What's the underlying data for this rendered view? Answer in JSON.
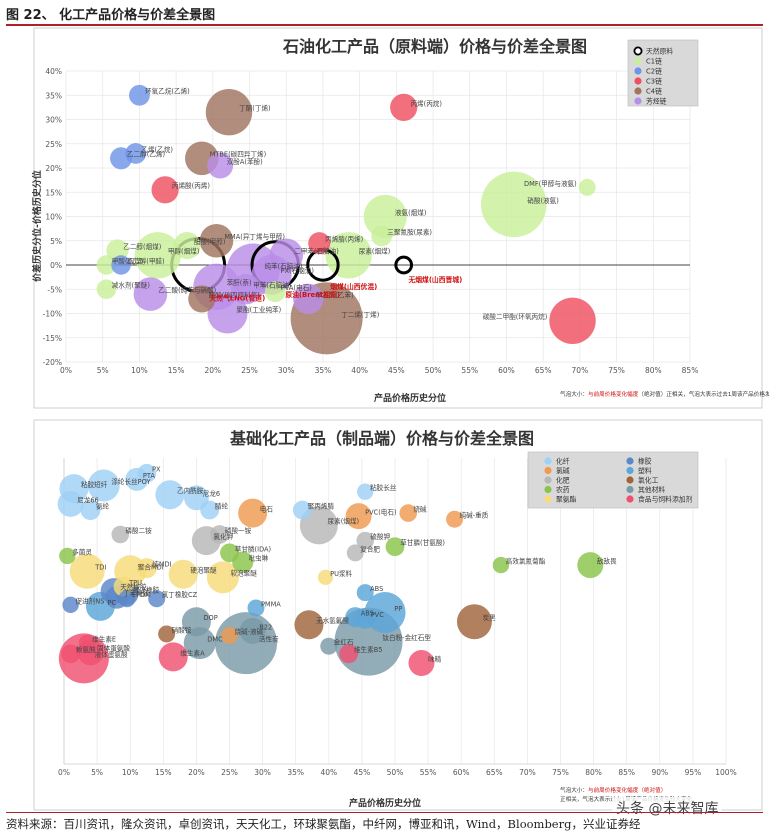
{
  "figure": {
    "title": "图 22、 化工产品价格与价差全景图",
    "source": "资料来源：百川资讯，隆众资讯，卓创资讯，天天化工，环球聚氨酯，中纤网，博亚和讯，Wind，Bloomberg，兴业证券经",
    "watermark": "头条 @未来智库"
  },
  "chart_data": [
    {
      "type": "scatter",
      "title": "石油化工产品（原料端）价格与价差全景图",
      "xlabel": "产品价格历史分位",
      "ylabel": "价差历史分位-价格历史分位",
      "xlim": [
        0,
        0.85
      ],
      "ylim": [
        -0.2,
        0.4
      ],
      "xticks": [
        "0%",
        "5%",
        "10%",
        "15%",
        "20%",
        "25%",
        "30%",
        "35%",
        "40%",
        "45%",
        "50%",
        "55%",
        "60%",
        "65%",
        "70%",
        "75%",
        "80%",
        "85%"
      ],
      "yticks": [
        "40%",
        "35%",
        "30%",
        "25%",
        "20%",
        "15%",
        "10%",
        "5%",
        "0%",
        "-5%",
        "-10%",
        "-15%",
        "-20%"
      ],
      "legend_position": "top-right",
      "legend": [
        {
          "name": "天然原料",
          "color": "#ffffff",
          "ring": true
        },
        {
          "name": "C1链",
          "color": "#c9ef9a"
        },
        {
          "name": "C2链",
          "color": "#6f95e8"
        },
        {
          "name": "C3链",
          "color": "#ef5060"
        },
        {
          "name": "C4链",
          "color": "#a07460"
        },
        {
          "name": "芳烃链",
          "color": "#b98ee8"
        }
      ],
      "note": {
        "prefix": "气泡大小：",
        "red": "与前周价格变化幅度",
        "rest": "（绝对值）正相关，气泡大表示过去1周该产品价格发生较大变化"
      },
      "points": [
        {
          "label": "环氧乙烷(乙烯)",
          "x": 0.1,
          "y": 0.35,
          "size": 0.2,
          "group": "C2链"
        },
        {
          "label": "乙烯(乙烷)",
          "x": 0.095,
          "y": 0.23,
          "size": 0.2,
          "group": "C2链"
        },
        {
          "label": "乙二醇(乙烯)",
          "x": 0.075,
          "y": 0.22,
          "size": 0.22,
          "group": "C2链"
        },
        {
          "label": "丁酮(丁烯)",
          "x": 0.222,
          "y": 0.315,
          "size": 0.6,
          "group": "C4链"
        },
        {
          "label": "丙烯(丙烷)",
          "x": 0.46,
          "y": 0.325,
          "size": 0.3,
          "group": "C3链"
        },
        {
          "label": "MTBE(碳四异丁烯)",
          "x": 0.185,
          "y": 0.22,
          "size": 0.4,
          "group": "C4链"
        },
        {
          "label": "双酚A(苯酚)",
          "x": 0.21,
          "y": 0.205,
          "size": 0.28,
          "group": "芳烃链"
        },
        {
          "label": "丙烯酸(丙烯)",
          "x": 0.135,
          "y": 0.155,
          "size": 0.3,
          "group": "C3链"
        },
        {
          "label": "液氨(烟煤)",
          "x": 0.435,
          "y": 0.1,
          "size": 0.55,
          "group": "C1链"
        },
        {
          "label": "硝酸(液氨)",
          "x": 0.61,
          "y": 0.125,
          "size": 0.9,
          "group": "C1链"
        },
        {
          "label": "DMF(甲醇与液氨)",
          "x": 0.71,
          "y": 0.16,
          "size": 0.14,
          "group": "C1链"
        },
        {
          "label": "三聚氰胺(尿素)",
          "x": 0.43,
          "y": 0.06,
          "size": 0.2,
          "group": "C1链"
        },
        {
          "label": "MMA(异丁烯与甲醇)",
          "x": 0.205,
          "y": 0.05,
          "size": 0.4,
          "group": "C4链"
        },
        {
          "label": "丙烯腈(丙烯)",
          "x": 0.345,
          "y": 0.045,
          "size": 0.22,
          "group": "C3链"
        },
        {
          "label": "尿素(烟煤)",
          "x": 0.385,
          "y": 0.02,
          "size": 0.6,
          "group": "C1链"
        },
        {
          "label": "二甲苯(石脑油)",
          "x": 0.3,
          "y": 0.02,
          "size": 0.4,
          "group": "芳烃链"
        },
        {
          "label": "醋酸(甲醇)",
          "x": 0.165,
          "y": 0.04,
          "size": 0.3,
          "group": "C1链"
        },
        {
          "label": "乙二醇(烟煤)",
          "x": 0.07,
          "y": 0.03,
          "size": 0.22,
          "group": "C1链"
        },
        {
          "label": "甲醇(烟煤)",
          "x": 0.125,
          "y": 0.02,
          "size": 0.6,
          "group": "C1链"
        },
        {
          "label": "甲酸(烟煤)",
          "x": 0.055,
          "y": 0.0,
          "size": 0.18,
          "group": "C1链"
        },
        {
          "label": "乙二醇(甲醛)",
          "x": 0.075,
          "y": 0.0,
          "size": 0.18,
          "group": "C2链"
        },
        {
          "label": "减水剂(聚醚)",
          "x": 0.055,
          "y": -0.05,
          "size": 0.18,
          "group": "C1链"
        },
        {
          "label": "乙二酸(纯苯与硝酸)",
          "x": 0.115,
          "y": -0.06,
          "size": 0.4,
          "group": "芳烃链"
        },
        {
          "label": "苯酐(萘)",
          "x": 0.205,
          "y": -0.045,
          "size": 0.6,
          "group": "芳烃链"
        },
        {
          "label": "纯苯(石脑油)",
          "x": 0.255,
          "y": -0.01,
          "size": 0.7,
          "group": "芳烃链"
        },
        {
          "label": "PX(石脑油)",
          "x": 0.28,
          "y": -0.02,
          "size": 0.5,
          "group": "芳烃链"
        },
        {
          "label": "醋酸(碳四原料气)",
          "x": 0.185,
          "y": -0.07,
          "size": 0.3,
          "group": "C4链"
        },
        {
          "label": "甲苯(石脑油)",
          "x": 0.245,
          "y": -0.05,
          "size": 0.35,
          "group": "芳烃链"
        },
        {
          "label": "PVA(电石)",
          "x": 0.285,
          "y": -0.055,
          "size": 0.2,
          "group": "C1链"
        },
        {
          "label": "苯乙烯(乙苯)",
          "x": 0.33,
          "y": -0.07,
          "size": 0.35,
          "group": "芳烃链"
        },
        {
          "label": "丁二烯(丁烯)",
          "x": 0.355,
          "y": -0.11,
          "size": 1.0,
          "group": "C4链"
        },
        {
          "label": "聚酯(工业纯苯)",
          "x": 0.22,
          "y": -0.1,
          "size": 0.5,
          "group": "芳烃链"
        },
        {
          "label": "碳酸二甲酯(环氧丙烷)",
          "x": 0.69,
          "y": -0.115,
          "size": 0.6,
          "group": "C3链"
        },
        {
          "label": "天然气LNG(管道)",
          "x": 0.18,
          "y": 0.0,
          "size": 0.7,
          "group": "天然原料"
        },
        {
          "label": "原油(Brent期货)",
          "x": 0.285,
          "y": 0.0,
          "size": 0.6,
          "group": "天然原料"
        },
        {
          "label": "烟煤(山西优混)",
          "x": 0.35,
          "y": 0.0,
          "size": 0.35,
          "group": "天然原料"
        },
        {
          "label": "无烟煤(山西晋城)",
          "x": 0.46,
          "y": 0.0,
          "size": 0.12,
          "group": "天然原料"
        }
      ]
    },
    {
      "type": "scatter",
      "title": "基础化工产品（制品端）价格与价差全景图",
      "xlabel": "产品价格历史分位",
      "xlim": [
        0,
        1.0
      ],
      "xticks": [
        "0%",
        "5%",
        "10%",
        "15%",
        "20%",
        "25%",
        "30%",
        "35%",
        "40%",
        "45%",
        "50%",
        "55%",
        "60%",
        "65%",
        "70%",
        "75%",
        "80%",
        "85%",
        "90%",
        "95%",
        "100%"
      ],
      "legend_position": "top-right",
      "legend": [
        {
          "name": "化纤",
          "color": "#9fd0f5"
        },
        {
          "name": "氯碱",
          "color": "#ef9a50"
        },
        {
          "name": "化肥",
          "color": "#b7b7b7"
        },
        {
          "name": "农药",
          "color": "#8ac44a"
        },
        {
          "name": "聚氨酯",
          "color": "#f7dc79"
        },
        {
          "name": "橡胶",
          "color": "#5b88c8"
        },
        {
          "name": "塑料",
          "color": "#5ba6d8"
        },
        {
          "name": "氯化工",
          "color": "#a0643c"
        },
        {
          "name": "其他材料",
          "color": "#7a9aa8"
        },
        {
          "name": "食品与饲料添加剂",
          "color": "#f05070"
        }
      ],
      "note": {
        "prefix": "气泡大小：",
        "red": "与前周价格变化幅度（绝对值）",
        "rest": "正相关，气泡大表示过去1周该产品价格发生较大变化"
      },
      "points": [
        {
          "label": "PX",
          "x": 0.125,
          "y": 0.95,
          "size": 0.18,
          "group": "化纤"
        },
        {
          "label": "PTA",
          "x": 0.11,
          "y": 0.93,
          "size": 0.25,
          "group": "化纤"
        },
        {
          "label": "涤纶长丝POY",
          "x": 0.06,
          "y": 0.91,
          "size": 0.4,
          "group": "化纤"
        },
        {
          "label": "粘胶短纤",
          "x": 0.015,
          "y": 0.9,
          "size": 0.35,
          "group": "化纤"
        },
        {
          "label": "乙内酰胺",
          "x": 0.16,
          "y": 0.88,
          "size": 0.35,
          "group": "化纤"
        },
        {
          "label": "尼龙6",
          "x": 0.2,
          "y": 0.87,
          "size": 0.28,
          "group": "化纤"
        },
        {
          "label": "尼龙66",
          "x": 0.01,
          "y": 0.85,
          "size": 0.3,
          "group": "化纤"
        },
        {
          "label": "氨纶",
          "x": 0.04,
          "y": 0.83,
          "size": 0.2,
          "group": "化纤"
        },
        {
          "label": "腈纶",
          "x": 0.22,
          "y": 0.83,
          "size": 0.18,
          "group": "化纤"
        },
        {
          "label": "粘胶长丝",
          "x": 0.455,
          "y": 0.89,
          "size": 0.14,
          "group": "化纤"
        },
        {
          "label": "电石",
          "x": 0.285,
          "y": 0.82,
          "size": 0.35,
          "group": "氯碱"
        },
        {
          "label": "聚丙烯腈",
          "x": 0.36,
          "y": 0.83,
          "size": 0.18,
          "group": "化纤"
        },
        {
          "label": "PVC(电石)",
          "x": 0.445,
          "y": 0.81,
          "size": 0.3,
          "group": "氯碱"
        },
        {
          "label": "烧碱",
          "x": 0.52,
          "y": 0.82,
          "size": 0.16,
          "group": "氯碱"
        },
        {
          "label": "纯碱-重质",
          "x": 0.59,
          "y": 0.8,
          "size": 0.15,
          "group": "氯碱"
        },
        {
          "label": "尿素(烟煤)",
          "x": 0.385,
          "y": 0.78,
          "size": 0.5,
          "group": "化肥"
        },
        {
          "label": "磷酸一铵",
          "x": 0.235,
          "y": 0.75,
          "size": 0.18,
          "group": "化肥"
        },
        {
          "label": "磷酸二铵",
          "x": 0.085,
          "y": 0.75,
          "size": 0.16,
          "group": "化肥"
        },
        {
          "label": "氯化钾",
          "x": 0.215,
          "y": 0.73,
          "size": 0.35,
          "group": "化肥"
        },
        {
          "label": "硫酸钾",
          "x": 0.455,
          "y": 0.73,
          "size": 0.16,
          "group": "化肥"
        },
        {
          "label": "草甘膦(甘氨酸)",
          "x": 0.5,
          "y": 0.71,
          "size": 0.18,
          "group": "农药"
        },
        {
          "label": "草甘膦(IDA)",
          "x": 0.25,
          "y": 0.69,
          "size": 0.18,
          "group": "农药"
        },
        {
          "label": "复合肥",
          "x": 0.44,
          "y": 0.69,
          "size": 0.15,
          "group": "化肥"
        },
        {
          "label": "多菌灵",
          "x": 0.005,
          "y": 0.68,
          "size": 0.14,
          "group": "农药"
        },
        {
          "label": "吡虫啉",
          "x": 0.27,
          "y": 0.66,
          "size": 0.22,
          "group": "农药"
        },
        {
          "label": "高效氯氰菊酯",
          "x": 0.66,
          "y": 0.65,
          "size": 0.14,
          "group": "农药"
        },
        {
          "label": "敌敌畏",
          "x": 0.795,
          "y": 0.65,
          "size": 0.3,
          "group": "农药"
        },
        {
          "label": "TDI",
          "x": 0.035,
          "y": 0.63,
          "size": 0.45,
          "group": "聚氨酯"
        },
        {
          "label": "聚合MDI",
          "x": 0.1,
          "y": 0.63,
          "size": 0.4,
          "group": "聚氨酯"
        },
        {
          "label": "纯MDI",
          "x": 0.125,
          "y": 0.64,
          "size": 0.2,
          "group": "聚氨酯"
        },
        {
          "label": "硬泡聚醚",
          "x": 0.18,
          "y": 0.62,
          "size": 0.35,
          "group": "聚氨酯"
        },
        {
          "label": "软泡聚醚",
          "x": 0.24,
          "y": 0.61,
          "size": 0.4,
          "group": "聚氨酯"
        },
        {
          "label": "PU浆料",
          "x": 0.395,
          "y": 0.61,
          "size": 0.12,
          "group": "聚氨酯"
        },
        {
          "label": "TPU",
          "x": 0.09,
          "y": 0.58,
          "size": 0.2,
          "group": "聚氨酯"
        },
        {
          "label": "天然橡胶",
          "x": 0.075,
          "y": 0.565,
          "size": 0.3,
          "group": "橡胶"
        },
        {
          "label": "顺丁橡胶",
          "x": 0.095,
          "y": 0.555,
          "size": 0.25,
          "group": "橡胶"
        },
        {
          "label": "丁苯橡胶",
          "x": 0.08,
          "y": 0.545,
          "size": 0.25,
          "group": "橡胶"
        },
        {
          "label": "EPDM",
          "x": 0.095,
          "y": 0.54,
          "size": 0.15,
          "group": "橡胶"
        },
        {
          "label": "氯丁橡胶CZ",
          "x": 0.14,
          "y": 0.54,
          "size": 0.15,
          "group": "橡胶"
        },
        {
          "label": "促进剂NS",
          "x": 0.01,
          "y": 0.52,
          "size": 0.14,
          "group": "橡胶"
        },
        {
          "label": "PC",
          "x": 0.055,
          "y": 0.515,
          "size": 0.35,
          "group": "塑料"
        },
        {
          "label": "ABS",
          "x": 0.455,
          "y": 0.56,
          "size": 0.15,
          "group": "塑料"
        },
        {
          "label": "PMMA",
          "x": 0.29,
          "y": 0.51,
          "size": 0.15,
          "group": "塑料"
        },
        {
          "label": "PP",
          "x": 0.485,
          "y": 0.495,
          "size": 0.55,
          "group": "塑料"
        },
        {
          "label": "ABS",
          "x": 0.44,
          "y": 0.48,
          "size": 0.2,
          "group": "塑料"
        },
        {
          "label": "PVC",
          "x": 0.455,
          "y": 0.475,
          "size": 0.2,
          "group": "塑料"
        },
        {
          "label": "DOP",
          "x": 0.2,
          "y": 0.465,
          "size": 0.35,
          "group": "其他材料"
        },
        {
          "label": "无水氢氟酸",
          "x": 0.37,
          "y": 0.455,
          "size": 0.35,
          "group": "氯化工"
        },
        {
          "label": "炭黑",
          "x": 0.62,
          "y": 0.465,
          "size": 0.45,
          "group": "氯化工"
        },
        {
          "label": "R22",
          "x": 0.285,
          "y": 0.435,
          "size": 0.3,
          "group": "其他材料"
        },
        {
          "label": "硝酸铵",
          "x": 0.155,
          "y": 0.425,
          "size": 0.15,
          "group": "氯化工"
        },
        {
          "label": "烧碱-液碱",
          "x": 0.25,
          "y": 0.42,
          "size": 0.15,
          "group": "氯碱"
        },
        {
          "label": "钛白粉-金红石型",
          "x": 0.46,
          "y": 0.4,
          "size": 1.0,
          "group": "其他材料"
        },
        {
          "label": "活性炭",
          "x": 0.275,
          "y": 0.395,
          "size": 0.9,
          "group": "其他材料"
        },
        {
          "label": "DMC",
          "x": 0.205,
          "y": 0.395,
          "size": 0.4,
          "group": "其他材料"
        },
        {
          "label": "金红石",
          "x": 0.4,
          "y": 0.385,
          "size": 0.15,
          "group": "其他材料"
        },
        {
          "label": "维生素E",
          "x": 0.035,
          "y": 0.395,
          "size": 0.15,
          "group": "食品与饲料添加剂"
        },
        {
          "label": "维生素B5",
          "x": 0.43,
          "y": 0.36,
          "size": 0.18,
          "group": "食品与饲料添加剂"
        },
        {
          "label": "固体蛋氨酸",
          "x": 0.04,
          "y": 0.365,
          "size": 0.3,
          "group": "食品与饲料添加剂"
        },
        {
          "label": "维生素A",
          "x": 0.165,
          "y": 0.35,
          "size": 0.35,
          "group": "食品与饲料添加剂"
        },
        {
          "label": "赖氨酸",
          "x": 0.01,
          "y": 0.36,
          "size": 0.18,
          "group": "食品与饲料添加剂"
        },
        {
          "label": "液体蛋氨酸",
          "x": 0.03,
          "y": 0.345,
          "size": 0.7,
          "group": "食品与饲料添加剂"
        },
        {
          "label": "味精",
          "x": 0.54,
          "y": 0.33,
          "size": 0.3,
          "group": "食品与饲料添加剂"
        }
      ]
    }
  ]
}
